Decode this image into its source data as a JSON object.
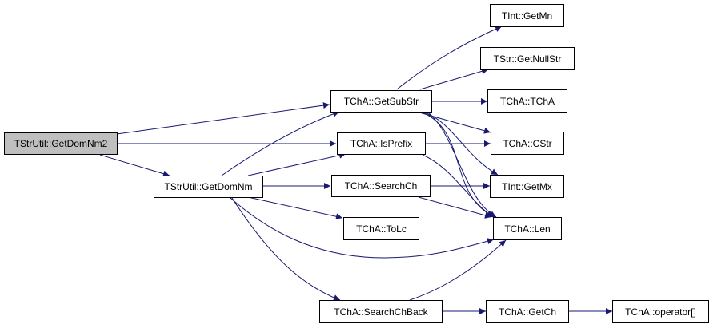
{
  "graph": {
    "edge_color": "#191970",
    "root_fill": "#bfbfbf",
    "nodes": {
      "getdomnm2": "TStrUtil::GetDomNm2",
      "getdomnm": "TStrUtil::GetDomNm",
      "getsubstr": "TChA::GetSubStr",
      "isprefix": "TChA::IsPrefix",
      "searchch": "TChA::SearchCh",
      "tolc": "TChA::ToLc",
      "searchchback": "TChA::SearchChBack",
      "getmn": "TInt::GetMn",
      "getnullstr": "TStr::GetNullStr",
      "tcha": "TChA::TChA",
      "cstr": "TChA::CStr",
      "getmx": "TInt::GetMx",
      "len": "TChA::Len",
      "getch": "TChA::GetCh",
      "operator": "TChA::operator[]"
    },
    "edges": [
      [
        "getdomnm2",
        "getsubstr"
      ],
      [
        "getdomnm2",
        "isprefix"
      ],
      [
        "getdomnm2",
        "getdomnm"
      ],
      [
        "getdomnm",
        "getsubstr"
      ],
      [
        "getdomnm",
        "isprefix"
      ],
      [
        "getdomnm",
        "searchch"
      ],
      [
        "getdomnm",
        "tolc"
      ],
      [
        "getdomnm",
        "len"
      ],
      [
        "getdomnm",
        "searchchback"
      ],
      [
        "getsubstr",
        "getmn"
      ],
      [
        "getsubstr",
        "getnullstr"
      ],
      [
        "getsubstr",
        "tcha"
      ],
      [
        "getsubstr",
        "cstr"
      ],
      [
        "getsubstr",
        "getmx"
      ],
      [
        "getsubstr",
        "len"
      ],
      [
        "isprefix",
        "cstr"
      ],
      [
        "isprefix",
        "len"
      ],
      [
        "searchch",
        "getmx"
      ],
      [
        "searchch",
        "len"
      ],
      [
        "searchchback",
        "len"
      ],
      [
        "searchchback",
        "getch"
      ],
      [
        "getch",
        "operator"
      ]
    ]
  }
}
